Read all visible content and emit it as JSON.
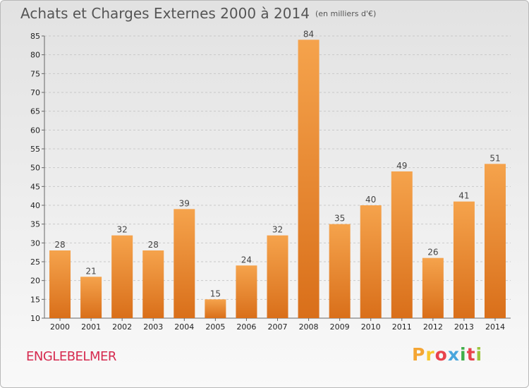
{
  "header": {
    "title": "Achats et Charges Externes 2000 à 2014",
    "unit": "(en milliers d'€)"
  },
  "commune": "ENGLEBELMER",
  "logo": {
    "letters": [
      "P",
      "r",
      "o",
      "x",
      "i",
      "t",
      "i"
    ],
    "colors": [
      "#f4a533",
      "#f7c72e",
      "#e8434c",
      "#49a6dd",
      "#3fae49",
      "#e8434c",
      "#9bc43c"
    ]
  },
  "colors": {
    "bar_light": "#f5a34c",
    "bar_dark": "#d96f1a",
    "commune": "#d62a4f"
  },
  "chart_data": {
    "type": "bar",
    "categories": [
      "2000",
      "2001",
      "2002",
      "2003",
      "2004",
      "2005",
      "2006",
      "2007",
      "2008",
      "2009",
      "2010",
      "2011",
      "2012",
      "2013",
      "2014"
    ],
    "values": [
      28,
      21,
      32,
      28,
      39,
      15,
      24,
      32,
      84,
      35,
      40,
      49,
      26,
      41,
      51
    ],
    "ylim": [
      10,
      85
    ],
    "yticks": [
      10,
      15,
      20,
      25,
      30,
      35,
      40,
      45,
      50,
      55,
      60,
      65,
      70,
      75,
      80,
      85
    ],
    "grid": "horizontal dashed",
    "legend": "none"
  }
}
